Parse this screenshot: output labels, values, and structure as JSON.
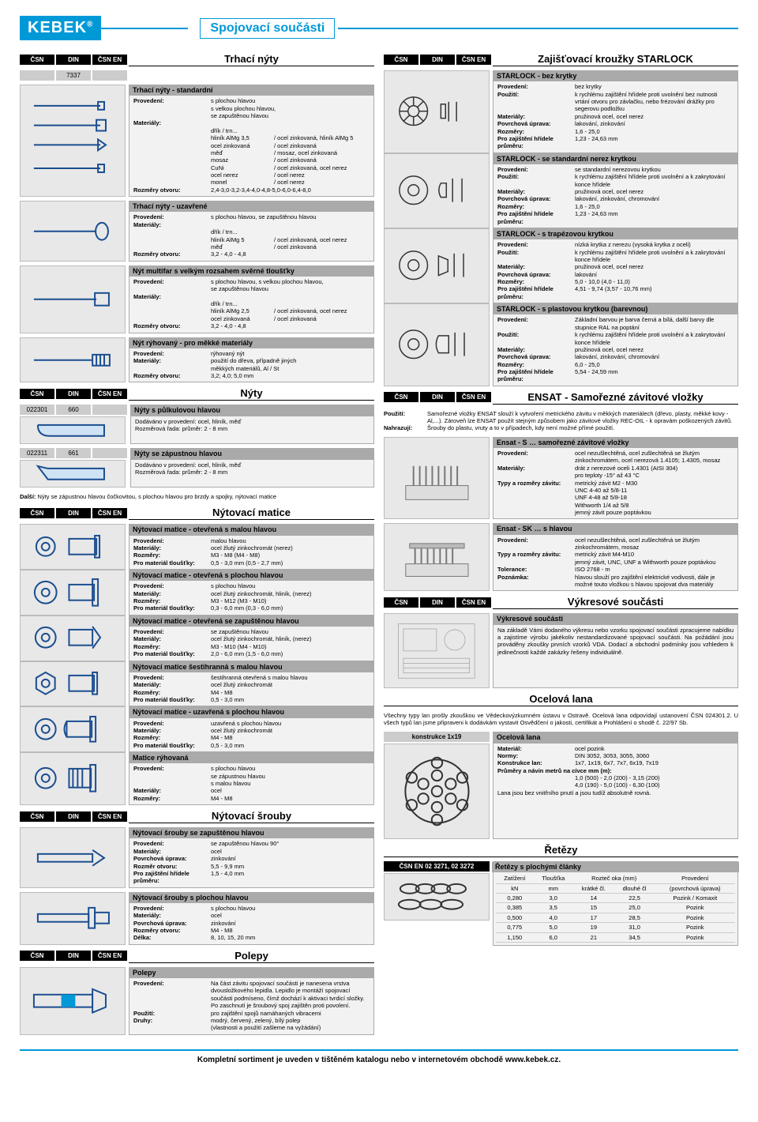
{
  "brand": "KEBEK",
  "page_title": "Spojovací součásti",
  "labels": {
    "csn": "ČSN",
    "din": "DIN",
    "csn_en": "ČSN EN",
    "dalsi": "Další:"
  },
  "footer": "Kompletní sortiment je uveden v tištěném katalogu nebo v internetovém obchodě www.kebek.cz.",
  "trhaci": {
    "title": "Trhací nýty",
    "din": "7337",
    "std": {
      "title": "Trhací nýty - standardní",
      "provedeni_lbl": "Provedení:",
      "provedeni": "s plochou hlavou\ns velkou plochou hlavou,\nse zapuštěnou hlavou",
      "mat_lbl": "Materiály:",
      "mat_rows": [
        [
          "dřík / trn...",
          ""
        ],
        [
          "hliník AlMg 3,5",
          "/ ocel zinkovaná, hliník AlMg 5"
        ],
        [
          "ocel zinkovaná",
          "/ ocel zinkovaná"
        ],
        [
          "měď",
          "/ mosaz, ocel zinkovaná"
        ],
        [
          "mosaz",
          "/ ocel zinkovaná"
        ],
        [
          "CuNi",
          "/ ocel zinkovaná, ocel nerez"
        ],
        [
          "ocel nerez",
          "/ ocel nerez"
        ],
        [
          "monel",
          "/ ocel nerez"
        ]
      ],
      "rozm_lbl": "Rozměry otvoru:",
      "rozm": "2,4-3,0-3,2-3,4-4,0-4,8-5,0-6,0-6,4-8,0"
    },
    "uzav": {
      "title": "Trhací nýty - uzavřené",
      "provedeni_lbl": "Provedení:",
      "provedeni": "s plochou hlavou, se zapuštěnou hlavou",
      "mat_lbl": "Materiály:",
      "mat_rows": [
        [
          "dřík / trn...",
          ""
        ],
        [
          "hliník AlMg 5",
          "/ ocel zinkovaná, ocel nerez"
        ],
        [
          "měď",
          "/ ocel zinkovaná"
        ]
      ],
      "rozm_lbl": "Rozměry otvoru:",
      "rozm": "3,2 - 4,0 - 4,8"
    },
    "multifar": {
      "title": "Nýt multifar s velkým rozsahem svěrné tloušťky",
      "provedeni_lbl": "Provedení:",
      "provedeni": "s plochou hlavou, s velkou plochou hlavou,\nse zapuštěnou hlavou",
      "mat_lbl": "Materiály:",
      "mat_rows": [
        [
          "dřík / trn...",
          ""
        ],
        [
          "hliník AlMg 2,5",
          "/ ocel zinkovaná, ocel nerez"
        ],
        [
          "ocel zinkovaná",
          "/ ocel zinkovaná"
        ]
      ],
      "rozm_lbl": "Rozměry otvoru:",
      "rozm": "3,2 - 4,0 - 4,8"
    },
    "ryh": {
      "title": "Nýt rýhovaný - pro měkké materiály",
      "provedeni_lbl": "Provedení:",
      "provedeni": "rýhovaný nýt",
      "mat_lbl": "Materiály:",
      "mat": "použití do dřeva, případně jiných\nměkkých materiálů, Al / St",
      "rozm_lbl": "Rozměry otvoru:",
      "rozm": "3,2; 4,0; 5,0 mm"
    }
  },
  "nyty": {
    "title": "Nýty",
    "r1": {
      "csn": "022301",
      "din": "660",
      "title": "Nýty s půlkulovou hlavou",
      "t1": "Dodáváno v provedení: ocel, hliník, měď",
      "t2": "Rozměrová řada: průměr: 2 - 8 mm"
    },
    "r2": {
      "csn": "022311",
      "din": "661",
      "title": "Nýty se zápustnou hlavou",
      "t1": "Dodáváno v provedení: ocel, hliník, měď",
      "t2": "Rozměrová řada: průměr: 2 - 8 mm"
    },
    "note": "Nýty se zápustnou hlavou čočkovitou, s plochou hlavou pro brzdy a spojky, nýtovací matice"
  },
  "matice": {
    "title": "Nýtovací matice",
    "b1": {
      "title": "Nýtovací matice - otevřená s malou hlavou",
      "p_lbl": "Provedení:",
      "p": "malou hlavou",
      "m_lbl": "Materiály:",
      "m": "ocel žlutý zinkochromát (nerez)",
      "r_lbl": "Rozměry:",
      "r": "M3 - M8 (M4 - M8)",
      "t_lbl": "Pro materiál tloušťky:",
      "t": "0,5 - 3,0 mm (0,5 - 2,7 mm)"
    },
    "b2": {
      "title": "Nýtovací matice - otevřená s plochou hlavou",
      "p_lbl": "Provedení:",
      "p": "s plochou hlavou",
      "m_lbl": "Materiály:",
      "m": "ocel žlutý zinkochromát, hliník, (nerez)",
      "r_lbl": "Rozměry:",
      "r": "M3 - M12 (M3 - M10)",
      "t_lbl": "Pro materiál tloušťky:",
      "t": "0,3 - 6,0 mm (0,3 - 6,0 mm)"
    },
    "b3": {
      "title": "Nýtovací matice - otevřená se zapuštěnou hlavou",
      "p_lbl": "Provedení:",
      "p": "se zapuštěnou hlavou",
      "m_lbl": "Materiály:",
      "m": "ocel žlutý zinkochromát, hliník, (nerez)",
      "r_lbl": "Rozměry:",
      "r": "M3 - M10 (M4 - M10)",
      "t_lbl": "Pro materiál tloušťky:",
      "t": "2,0 - 6,0 mm (1,5 - 6,0 mm)"
    },
    "b4": {
      "title": "Nýtovací matice šestihranná s malou hlavou",
      "p_lbl": "Provedení:",
      "p": "šestihranná otevřená s malou hlavou",
      "m_lbl": "Materiály:",
      "m": "ocel žlutý zinkochromát",
      "r_lbl": "Rozměry:",
      "r": "M4 - M8",
      "t_lbl": "Pro materiál tloušťky:",
      "t": "0,5 - 3,0 mm"
    },
    "b5": {
      "title": "Nýtovací matice - uzavřená s plochou hlavou",
      "p_lbl": "Provedení:",
      "p": "uzavřená s plochou hlavou",
      "m_lbl": "Materiály:",
      "m": "ocel žlutý zinkochromát",
      "r_lbl": "Rozměry:",
      "r": "M4 - M8",
      "t_lbl": "Pro materiál tloušťky:",
      "t": "0,5 - 3,0 mm"
    },
    "b6": {
      "title": "Matice rýhovaná",
      "p_lbl": "Provedení:",
      "p": "s plochou hlavou\nse zápustnou hlavou\ns malou hlavou",
      "m_lbl": "Materiály:",
      "m": "ocel",
      "r_lbl": "Rozměry:",
      "r": "M4 - M8"
    }
  },
  "srouby": {
    "title": "Nýtovací šrouby",
    "b1": {
      "title": "Nýtovací šrouby se zapuštěnou hlavou",
      "p_lbl": "Provedení:",
      "p": "se zapuštěnou hlavou 90°",
      "m_lbl": "Materiály:",
      "m": "ocel",
      "u_lbl": "Povrchová úprava:",
      "u": "zinkování",
      "o_lbl": "Rozměr otvoru:",
      "o": "5,5 - 9,9 mm",
      "z_lbl": "Pro zajištění hřídele průměru:",
      "z": "1,5 - 4,0 mm"
    },
    "b2": {
      "title": "Nýtovací šrouby s plochou hlavou",
      "p_lbl": "Provedení:",
      "p": "s plochou hlavou",
      "m_lbl": "Materiály:",
      "m": "ocel",
      "u_lbl": "Povrchová úprava:",
      "u": "zinkování",
      "r_lbl": "Rozměry otvoru:",
      "r": "M4 - M8",
      "d_lbl": "Délka:",
      "d": "8, 10, 15, 20 mm"
    }
  },
  "polepy": {
    "title": "Polepy",
    "box_title": "Polepy",
    "p_lbl": "Provedení:",
    "p": "Na část závitu spojovací součásti je nanesena vrstva dvousložkového lepidla. Lepidlo je montáží spojovací součásti podmíseno, čímž dochází k aktivaci tvrdicí složky. Po zaschnutí je šroubový spoj zajištěn proti povolení.",
    "u_lbl": "Použití:",
    "u": "pro zajištění spojů namáhaných vibracemi",
    "d_lbl": "Druhy:",
    "d": "modrý, červený, zelený, bílý polep\n(vlastnosti a použití zašleme na vyžádání)"
  },
  "starlock": {
    "title": "Zajišťovací kroužky STARLOCK",
    "b1": {
      "title": "STARLOCK - bez krytky",
      "p_lbl": "Provedení:",
      "p": "bez krytky",
      "u_lbl": "Použití:",
      "u": "k rychlému zajištění hřídele proti uvolnění bez nutnosti vrtání otvoru pro závlačku, nebo frézování drážky pro segerovu podložku",
      "m_lbl": "Materiály:",
      "m": "pružinová ocel, ocel nerez",
      "pu_lbl": "Povrchová úprava:",
      "pu": "lakování, zinkování",
      "r_lbl": "Rozměry:",
      "r": "1,6 - 25,0",
      "z_lbl": "Pro zajištění hřídele průměru:",
      "z": "1,23 - 24,63 mm"
    },
    "b2": {
      "title": "STARLOCK - se standardní nerez krytkou",
      "p_lbl": "Provedení:",
      "p": "se standardní nerezovou krytkou",
      "u_lbl": "Použití:",
      "u": "k rychlému zajištění hřídele proti uvolnění a k zakrytování konce hřídele",
      "m_lbl": "Materiály:",
      "m": "pružinová ocel, ocel nerez",
      "pu_lbl": "Povrchová úprava:",
      "pu": "lakování, zinkování, chromování",
      "r_lbl": "Rozměry:",
      "r": "1,6 - 25,0",
      "z_lbl": "Pro zajištění hřídele průměru:",
      "z": "1,23 - 24,63 mm"
    },
    "b3": {
      "title": "STARLOCK - s trapézovou krytkou",
      "p_lbl": "Provedení:",
      "p": "nízká krytka z nerezu (vysoká krytka z oceli)",
      "u_lbl": "Použití:",
      "u": "k rychlému zajištění hřídele proti uvolnění a k zakrytování konce hřídele",
      "m_lbl": "Materiály:",
      "m": "pružinová ocel, ocel nerez",
      "pu_lbl": "Povrchová úprava:",
      "pu": "lakování",
      "r_lbl": "Rozměry:",
      "r": "5,0 - 10,0 (4,0 - 11,0)",
      "z_lbl": "Pro zajištění hřídele průměru:",
      "z": "4,51 - 9,74 (3,57 - 10,76 mm)"
    },
    "b4": {
      "title": "STARLOCK - s plastovou krytkou (barevnou)",
      "p_lbl": "Provedení:",
      "p": "Základní barvou je barva černá a bílá, další barvy dle stupnice RAL na poptání",
      "u_lbl": "Použití:",
      "u": "k rychlému zajištění hřídele proti uvolnění a k zakrytování konce hřídele",
      "m_lbl": "Materiály:",
      "m": "pružinová ocel, ocel nerez",
      "pu_lbl": "Povrchová úprava:",
      "pu": "lakování, zinkování, chromování",
      "r_lbl": "Rozměry:",
      "r": "6,0 - 25,0",
      "z_lbl": "Pro zajištění hřídele průměru:",
      "z": "5,54 - 24,59 mm"
    }
  },
  "ensat": {
    "title": "ENSAT - Samořezné závitové vložky",
    "intro_u_lbl": "Použití:",
    "intro_u": "Samořezné vložky ENSAT slouží k vytvoření metrického závitu v měkkých materiálech (dřevo, plasty, měkké kovy - Al,...). Zároveň lze ENSAT použít stejným způsobem jako závitové vložky REC-OIL - k opravám poškozených závitů.",
    "intro_n_lbl": "Nahrazují:",
    "intro_n": "Šrouby do plastu, vruty a to v případech, kdy není možné přímé použití.",
    "b1": {
      "title": "Ensat - S … samořezné závitové vložky",
      "p_lbl": "Provedení:",
      "p": "ocel nezušlechtěná, ocel zušlechtěná se žlutým zinkochromátem, ocel nerezová 1.4105; 1.4305, mosaz",
      "m_lbl": "Materiály:",
      "m": "drát z nerezové oceli 1.4301 (AISI 304)\npro teploty -15° až 43 °C",
      "t_lbl": "Typy a rozměry závitu:",
      "t": "metrický závit M2 - M30\nUNC 4-40 až 5/8-11\nUNF 4-48 až 5/8-18\nWithworth 1/4 až 5/8\njemný závit pouze poptávkou"
    },
    "b2": {
      "title": "Ensat - SK … s hlavou",
      "p_lbl": "Provedení:",
      "p": "ocel nezušlechtěná, ocel zušlechtěná se žlutým zinkochromátem, mosaz",
      "t_lbl": "Typy a rozměry závitu:",
      "t": "metrický závit M4-M10\njemný závit, UNC, UNF a Withworth pouze poptávkou",
      "tol_lbl": "Tolerance:",
      "tol": "ISO 2768 - m",
      "pz_lbl": "Poznámka:",
      "pz": "hlavou slouží pro zajištění elektrické vodivosti, dále je možné touto vložkou s hlavou spojovat dva materiály"
    }
  },
  "vykres": {
    "title": "Výkresové součásti",
    "box_title": "Výkresové součásti",
    "text": "Na základě Vámi dodaného výkresu nebo vzorku spojovací součásti zpracujeme nabídku a zajistíme výrobu jakékoliv nestandardizované spojovací součásti. Na požádání jsou prováděny zkoušky prvních vzorků VDA. Dodací a obchodní podmínky jsou vzhledem k jedinečnosti každé zakázky řešeny individuálně."
  },
  "lana": {
    "title": "Ocelová lana",
    "intro": "Všechny typy lan prošly zkouškou ve Vědeckovýzkumném ústavu v Ostravě. Ocelová lana odpovídají ustanovení ČSN 024301.2. U všech typů lan jsme připraveni k dodávkám vystavit Osvědčení o jakosti, certifikát a Prohlášení o shodě č. 22/97 Sb.",
    "kon_title": "konstrukce 1x19",
    "box_title": "Ocelová lana",
    "m_lbl": "Materiál:",
    "m": "ocel pozink",
    "n_lbl": "Normy:",
    "n": "DIN 3052, 3053, 3055, 3060",
    "k_lbl": "Konstrukce lan:",
    "k": "1x7, 1x19, 6x7, 7x7, 6x19, 7x19",
    "pr_lbl": "Průměry a návin metrů na cívce mm (m):",
    "pr1": "1,0 (500) - 2,0 (200) - 3,15 (200)",
    "pr2": "4,0 (190) - 5,0 (100) - 6,30 (100)",
    "note": "Lana jsou bez vnitřního pnutí a jsou tudíž absolutně rovná."
  },
  "retezy": {
    "title": "Řetězy",
    "csn_en": "ČSN EN 02 3271, 02 3272",
    "box_title": "Řetězy s plochými články",
    "head": {
      "zat": "Zatížení",
      "tl": "Tloušťka",
      "roz": "Rozteč oka (mm)",
      "prov": "Provedení",
      "kn": "kN",
      "mm": "mm",
      "kr": "krátké čl.",
      "dl": "dlouhé čl",
      "pu": "(povrchová úprava)"
    },
    "rows": [
      [
        "0,280",
        "3,0",
        "14",
        "22,5",
        "Pozink / Komaxit"
      ],
      [
        "0,385",
        "3,5",
        "15",
        "25,0",
        "Pozink"
      ],
      [
        "0,500",
        "4,0",
        "17",
        "28,5",
        "Pozink"
      ],
      [
        "0,775",
        "5,0",
        "19",
        "31,0",
        "Pozink"
      ],
      [
        "1,150",
        "6,0",
        "21",
        "34,5",
        "Pozink"
      ]
    ]
  }
}
